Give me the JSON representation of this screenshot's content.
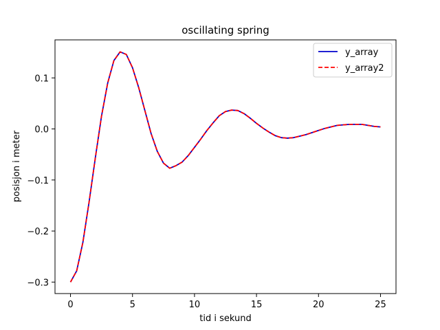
{
  "chart_data": {
    "type": "line",
    "title": "oscillating spring",
    "xlabel": "tid i sekund",
    "ylabel": "posisjon i meter",
    "xlim": [
      -1.25,
      26.25
    ],
    "ylim": [
      -0.3225,
      0.1745
    ],
    "xticks": [
      0,
      5,
      10,
      15,
      20,
      25
    ],
    "xtick_labels": [
      "0",
      "5",
      "10",
      "15",
      "20",
      "25"
    ],
    "yticks": [
      -0.3,
      -0.2,
      -0.1,
      0.0,
      0.1
    ],
    "ytick_labels": [
      "−0.3",
      "−0.2",
      "−0.1",
      "0.0",
      "0.1"
    ],
    "grid": false,
    "legend_position": "top-right",
    "x": [
      0,
      0.5,
      1,
      1.5,
      2,
      2.5,
      3,
      3.5,
      4,
      4.5,
      5,
      5.5,
      6,
      6.5,
      7,
      7.5,
      8,
      8.5,
      9,
      9.5,
      10,
      10.5,
      11,
      11.5,
      12,
      12.5,
      13,
      13.5,
      14,
      14.5,
      15,
      15.5,
      16,
      16.5,
      17,
      17.5,
      18,
      18.5,
      19,
      19.5,
      20,
      20.5,
      21,
      21.5,
      22,
      22.5,
      23,
      23.5,
      24,
      24.5,
      25
    ],
    "series": [
      {
        "name": "y_array",
        "color": "#0000cc",
        "style": "solid",
        "values": [
          -0.3,
          -0.278,
          -0.222,
          -0.143,
          -0.057,
          0.025,
          0.09,
          0.134,
          0.151,
          0.146,
          0.12,
          0.081,
          0.036,
          -0.009,
          -0.044,
          -0.067,
          -0.077,
          -0.072,
          -0.065,
          -0.052,
          -0.036,
          -0.02,
          -0.003,
          0.012,
          0.026,
          0.034,
          0.037,
          0.036,
          0.03,
          0.021,
          0.011,
          0.002,
          -0.006,
          -0.013,
          -0.017,
          -0.018,
          -0.017,
          -0.014,
          -0.011,
          -0.007,
          -0.003,
          0.001,
          0.004,
          0.007,
          0.008,
          0.009,
          0.009,
          0.009,
          0.007,
          0.005,
          0.004
        ]
      },
      {
        "name": "y_array2",
        "color": "#ff0000",
        "style": "dashed",
        "values": [
          -0.3,
          -0.278,
          -0.222,
          -0.143,
          -0.057,
          0.025,
          0.09,
          0.134,
          0.151,
          0.146,
          0.12,
          0.081,
          0.036,
          -0.009,
          -0.044,
          -0.067,
          -0.077,
          -0.072,
          -0.065,
          -0.052,
          -0.036,
          -0.02,
          -0.003,
          0.012,
          0.026,
          0.034,
          0.037,
          0.036,
          0.03,
          0.021,
          0.011,
          0.002,
          -0.006,
          -0.013,
          -0.017,
          -0.018,
          -0.017,
          -0.014,
          -0.011,
          -0.007,
          -0.003,
          0.001,
          0.004,
          0.007,
          0.008,
          0.009,
          0.009,
          0.009,
          0.007,
          0.005,
          0.004
        ]
      }
    ]
  }
}
